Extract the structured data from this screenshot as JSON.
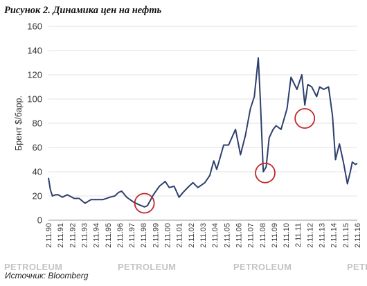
{
  "header": {
    "title": "Рисунок 2. Динамика цен на нефть"
  },
  "watermark": {
    "text": "PETROLEUM"
  },
  "footer": {
    "source": "Источник: Bloomberg"
  },
  "colors": {
    "line": "#2d3f6e",
    "circle": "#c0272d",
    "grid": "#e2e2e2"
  },
  "chart_data": {
    "type": "line",
    "title": "Рисунок 2. Динамика цен на нефть",
    "ylabel": "Брент $/барр.",
    "xlabel": "",
    "ylim": [
      0,
      160
    ],
    "yticks": [
      0,
      20,
      40,
      60,
      80,
      100,
      120,
      140,
      160
    ],
    "xlim": [
      "1990-11-02",
      "2016-11-02"
    ],
    "xticks": [
      "2.11.90",
      "2.11.91",
      "2.11.92",
      "2.11.93",
      "2.11.94",
      "2.11.95",
      "2.11.96",
      "2.11.97",
      "2.11.98",
      "2.11.99",
      "2.11.00",
      "2.11.01",
      "2.11.02",
      "2.11.03",
      "2.11.04",
      "2.11.05",
      "2.11.06",
      "2.11.07",
      "2.11.08",
      "2.11.09",
      "2.11.10",
      "2.11.11",
      "2.11.12",
      "2.11.13",
      "2.11.14",
      "2.11.15",
      "2.11.16"
    ],
    "grid": "horizontal",
    "series": [
      {
        "x": [
          "1990-11",
          "1991-01",
          "1991-03",
          "1991-06",
          "1991-09",
          "1992-01",
          "1992-06",
          "1993-01",
          "1993-06",
          "1993-12",
          "1994-06",
          "1995-01",
          "1995-06",
          "1996-01",
          "1996-06",
          "1996-10",
          "1997-01",
          "1997-06",
          "1998-01",
          "1998-06",
          "1998-12",
          "1999-03",
          "1999-09",
          "2000-03",
          "2000-09",
          "2001-01",
          "2001-06",
          "2001-11",
          "2002-03",
          "2002-09",
          "2003-01",
          "2003-06",
          "2004-01",
          "2004-06",
          "2004-10",
          "2005-01",
          "2005-08",
          "2006-01",
          "2006-08",
          "2007-01",
          "2007-06",
          "2007-11",
          "2008-03",
          "2008-07",
          "2008-09",
          "2008-12",
          "2009-03",
          "2009-06",
          "2009-10",
          "2010-01",
          "2010-06",
          "2010-12",
          "2011-04",
          "2011-10",
          "2012-03",
          "2012-06",
          "2012-09",
          "2013-01",
          "2013-06",
          "2013-09",
          "2014-01",
          "2014-06",
          "2014-10",
          "2015-01",
          "2015-05",
          "2015-09",
          "2016-01",
          "2016-04",
          "2016-06",
          "2016-09",
          "2016-11"
        ],
        "values": [
          35,
          25,
          20,
          21,
          21,
          19,
          21,
          18,
          18,
          14,
          17,
          17,
          17,
          19,
          20,
          23,
          24,
          19,
          15,
          13,
          11,
          12,
          21,
          28,
          32,
          27,
          28,
          19,
          23,
          28,
          31,
          27,
          31,
          37,
          49,
          42,
          62,
          62,
          75,
          54,
          70,
          92,
          102,
          134,
          100,
          40,
          44,
          68,
          75,
          78,
          75,
          92,
          118,
          108,
          120,
          95,
          112,
          110,
          102,
          110,
          108,
          110,
          86,
          50,
          63,
          48,
          30,
          40,
          48,
          46,
          47
        ]
      }
    ],
    "annotations": [
      {
        "shape": "circle",
        "x": "1998-12",
        "y": 14
      },
      {
        "shape": "circle",
        "x": "2009-02",
        "y": 39
      },
      {
        "shape": "circle",
        "x": "2012-06",
        "y": 84
      }
    ]
  }
}
